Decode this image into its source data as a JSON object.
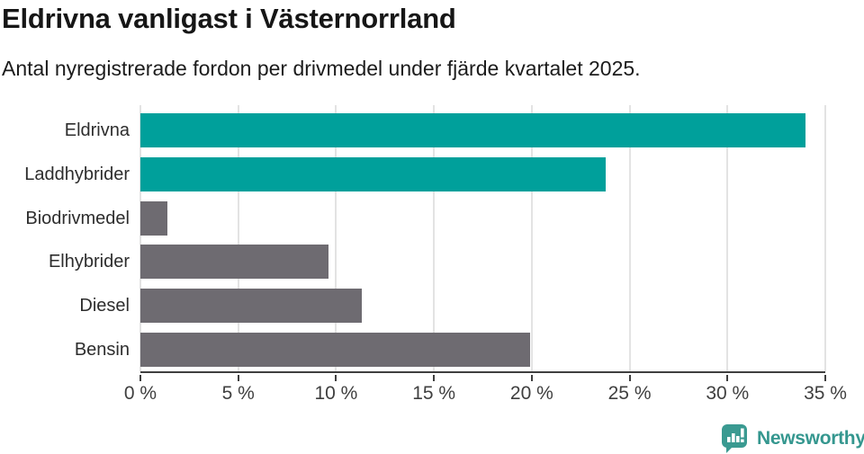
{
  "header": {
    "title": "Eldrivna vanligast i Västernorrland",
    "subtitle": "Antal nyregistrerade fordon per drivmedel under fjärde kvartalet 2025."
  },
  "chart_data": {
    "type": "bar",
    "orientation": "horizontal",
    "title": "Eldrivna vanligast i Västernorrland",
    "subtitle": "Antal nyregistrerade fordon per drivmedel under fjärde kvartalet 2025.",
    "categories": [
      "Eldrivna",
      "Laddhybrider",
      "Biodrivmedel",
      "Elhybrider",
      "Diesel",
      "Bensin"
    ],
    "values": [
      34.0,
      23.8,
      1.4,
      9.6,
      11.3,
      19.9
    ],
    "unit": "%",
    "bar_colors": [
      "#00a09b",
      "#00a09b",
      "#6e6b71",
      "#6e6b71",
      "#6e6b71",
      "#6e6b71"
    ],
    "highlight_color": "#00a09b",
    "default_color": "#6e6b71",
    "xlabel": "",
    "ylabel": "",
    "xlim": [
      0,
      35
    ],
    "x_ticks": [
      0,
      5,
      10,
      15,
      20,
      25,
      30,
      35
    ],
    "x_tick_labels": [
      "0 %",
      "5 %",
      "10 %",
      "15 %",
      "20 %",
      "25 %",
      "30 %",
      "35 %"
    ],
    "grid": "vertical-light",
    "legend": "none"
  },
  "branding": {
    "logo_text": "Newsworthy",
    "logo_color": "#35978f",
    "logo_icon": "bar-chart-speech-bubble-icon"
  }
}
